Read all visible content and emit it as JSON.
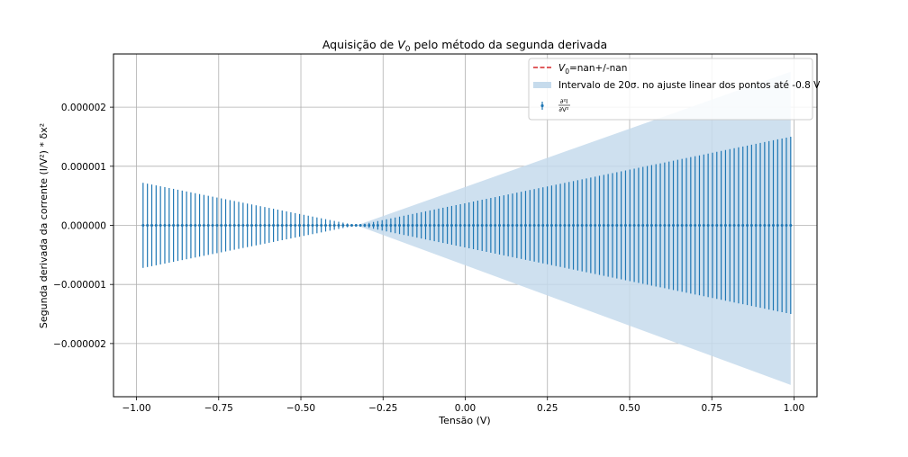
{
  "chart_data": {
    "type": "scatter",
    "title_prefix": "Aquisição de ",
    "title_var": "V",
    "title_sub": "0",
    "title_suffix": " pelo método da segunda derivada",
    "xlabel": "Tensão (V)",
    "ylabel": "Segunda derivada da corrente (I/V²) * δx²",
    "xlim": [
      -1.07,
      1.07
    ],
    "ylim": [
      -2.9e-06,
      2.9e-06
    ],
    "xticks": [
      -1.0,
      -0.75,
      -0.5,
      -0.25,
      0.0,
      0.25,
      0.5,
      0.75,
      1.0
    ],
    "xtick_labels": [
      "−1.00",
      "−0.75",
      "−0.50",
      "−0.25",
      "0.00",
      "0.25",
      "0.50",
      "0.75",
      "1.00"
    ],
    "yticks": [
      2e-06,
      1e-06,
      0.0,
      -1e-06,
      -2e-06
    ],
    "ytick_labels": [
      "0.000002",
      "0.000001",
      "0.000000",
      "−0.000001",
      "−0.000002"
    ],
    "grid": true,
    "legend_position": "top-right",
    "legend": {
      "v0_prefix": "V",
      "v0_sub": "0",
      "v0_suffix": "=nan+/-nan",
      "band_label": "Intervalo de 20σ. no ajuste linear dos pontos até -0.8 V",
      "points_num": "∂²I",
      "points_den": "∂V²"
    },
    "colors": {
      "points": "#1f77b4",
      "band": "#c6dbec",
      "v0_line": "#d62728",
      "grid": "#b0b0b0"
    },
    "band": {
      "x": [
        -0.98,
        0.99
      ],
      "upper": [
        1e-08,
        2.6e-06
      ],
      "lower": [
        1e-08,
        -2.7e-06
      ],
      "crossover_x": -0.33
    },
    "points": {
      "x_start": -0.98,
      "x_end": 0.99,
      "count": 150,
      "y_value": 0.0,
      "errorbar": {
        "x": [
          -0.98,
          -0.33,
          0.99
        ],
        "halfwidth": [
          7.2e-07,
          0.0,
          1.5e-06
        ]
      }
    }
  }
}
